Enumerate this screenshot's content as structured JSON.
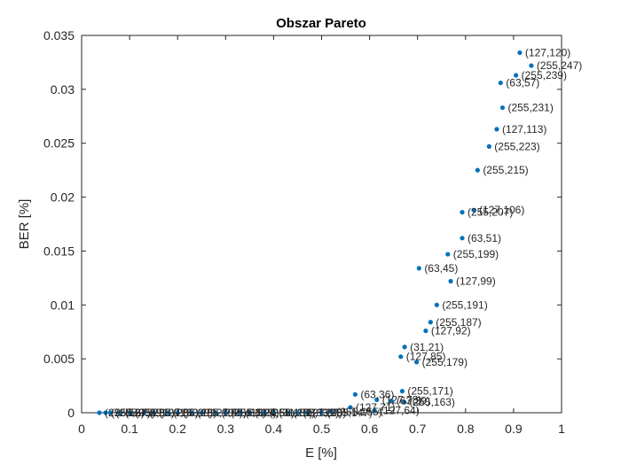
{
  "chart_data": {
    "type": "scatter",
    "title": "Obszar Pareto",
    "xlabel": "E [%]",
    "ylabel": "BER [%]",
    "xlim": [
      0,
      1
    ],
    "ylim": [
      0,
      0.035
    ],
    "xticks": [
      "0",
      "0.1",
      "0.2",
      "0.3",
      "0.4",
      "0.5",
      "0.6",
      "0.7",
      "0.8",
      "0.9",
      "1"
    ],
    "yticks": [
      "0",
      "0.005",
      "0.01",
      "0.015",
      "0.02",
      "0.025",
      "0.03",
      "0.035"
    ],
    "grid": false,
    "marker_color": "#0072BD",
    "points": [
      {
        "x": 0.913,
        "y": 0.0334,
        "label": "(127,120)"
      },
      {
        "x": 0.937,
        "y": 0.0322,
        "label": "(255,247)"
      },
      {
        "x": 0.905,
        "y": 0.0313,
        "label": "(255,239)"
      },
      {
        "x": 0.873,
        "y": 0.0306,
        "label": "(63,57)"
      },
      {
        "x": 0.877,
        "y": 0.0283,
        "label": "(255,231)"
      },
      {
        "x": 0.865,
        "y": 0.0263,
        "label": "(127,113)"
      },
      {
        "x": 0.849,
        "y": 0.0247,
        "label": "(255,223)"
      },
      {
        "x": 0.825,
        "y": 0.0225,
        "label": "(255,215)"
      },
      {
        "x": 0.817,
        "y": 0.0188,
        "label": "(127,106)"
      },
      {
        "x": 0.793,
        "y": 0.0186,
        "label": "(255,207)"
      },
      {
        "x": 0.793,
        "y": 0.0162,
        "label": "(63,51)"
      },
      {
        "x": 0.763,
        "y": 0.0147,
        "label": "(255,199)"
      },
      {
        "x": 0.703,
        "y": 0.0134,
        "label": "(63,45)"
      },
      {
        "x": 0.769,
        "y": 0.0122,
        "label": "(127,99)"
      },
      {
        "x": 0.74,
        "y": 0.01,
        "label": "(255,191)"
      },
      {
        "x": 0.727,
        "y": 0.0084,
        "label": "(255,187)"
      },
      {
        "x": 0.717,
        "y": 0.0076,
        "label": "(127,92)"
      },
      {
        "x": 0.673,
        "y": 0.0061,
        "label": "(31,21)"
      },
      {
        "x": 0.665,
        "y": 0.0052,
        "label": "(127,85)"
      },
      {
        "x": 0.698,
        "y": 0.0047,
        "label": "(255,179)"
      },
      {
        "x": 0.668,
        "y": 0.002,
        "label": "(255,171)"
      },
      {
        "x": 0.57,
        "y": 0.0017,
        "label": "(63,36)"
      },
      {
        "x": 0.615,
        "y": 0.0012,
        "label": "(127,78)"
      },
      {
        "x": 0.645,
        "y": 0.0011,
        "label": "(63,39)"
      },
      {
        "x": 0.672,
        "y": 0.001,
        "label": "(255,163)"
      },
      {
        "x": 0.56,
        "y": 0.0005,
        "label": "(127,71)"
      },
      {
        "x": 0.61,
        "y": 0.0002,
        "label": "(127,64)"
      },
      {
        "x": 0.52,
        "y": 0.0001,
        "label": "(255,155)"
      },
      {
        "x": 0.5,
        "y": 0.0,
        "label": "(255,147)"
      },
      {
        "x": 0.47,
        "y": 0.0,
        "label": "(63,30)"
      },
      {
        "x": 0.45,
        "y": 0.0,
        "label": "(127,57)"
      },
      {
        "x": 0.43,
        "y": 0.0,
        "label": "(255,139)"
      },
      {
        "x": 0.4,
        "y": 0.0,
        "label": "(31,16)"
      },
      {
        "x": 0.38,
        "y": 0.0,
        "label": "(255,131)"
      },
      {
        "x": 0.35,
        "y": 0.0,
        "label": "(127,50)"
      },
      {
        "x": 0.33,
        "y": 0.0,
        "label": "(63,24)"
      },
      {
        "x": 0.3,
        "y": 0.0,
        "label": "(255,123)"
      },
      {
        "x": 0.28,
        "y": 0.0,
        "label": "(255,115)"
      },
      {
        "x": 0.25,
        "y": 0.0,
        "label": "(127,43)"
      },
      {
        "x": 0.23,
        "y": 0.0,
        "label": "(255,107)"
      },
      {
        "x": 0.2,
        "y": 0.0,
        "label": "(63,18)"
      },
      {
        "x": 0.18,
        "y": 0.0,
        "label": "(255,99)"
      },
      {
        "x": 0.15,
        "y": 0.0,
        "label": "(127,36)"
      },
      {
        "x": 0.13,
        "y": 0.0,
        "label": "(255,91)"
      },
      {
        "x": 0.1,
        "y": 0.0,
        "label": "(255,83)"
      },
      {
        "x": 0.08,
        "y": 0.0,
        "label": "(127,29)"
      },
      {
        "x": 0.06,
        "y": 0.0,
        "label": "(255,75)"
      },
      {
        "x": 0.05,
        "y": 0.0,
        "label": "(255,67)"
      },
      {
        "x": 0.037,
        "y": 0.0,
        "label": "(255,59)"
      }
    ]
  }
}
